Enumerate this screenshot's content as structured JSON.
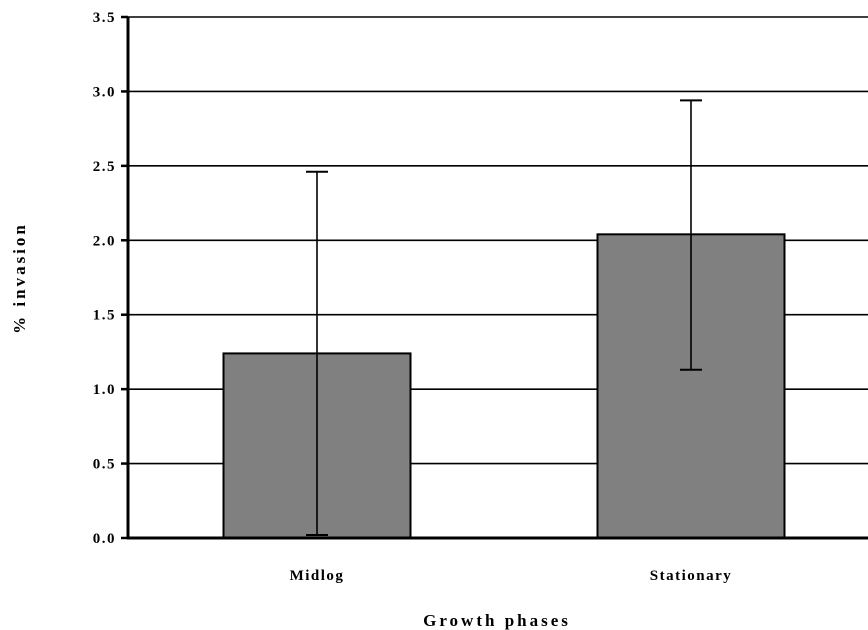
{
  "chart_data": {
    "type": "bar",
    "title": "",
    "xlabel": "Growth phases",
    "ylabel": "% invasion",
    "categories": [
      "Midlog",
      "Stationary"
    ],
    "values": [
      1.24,
      2.04
    ],
    "error_upper": [
      2.46,
      2.94
    ],
    "error_lower": [
      0.02,
      1.13
    ],
    "ylim": [
      0,
      3.5
    ],
    "yticks": [
      "0.0",
      "0.5",
      "1.0",
      "1.5",
      "2.0",
      "2.5",
      "3.0",
      "3.5"
    ],
    "ytick_values": [
      0,
      0.5,
      1.0,
      1.5,
      2.0,
      2.5,
      3.0,
      3.5
    ],
    "grid": "horizontal",
    "legend": "none",
    "bar_color": "#808080",
    "bar_edge_color": "#000000"
  }
}
